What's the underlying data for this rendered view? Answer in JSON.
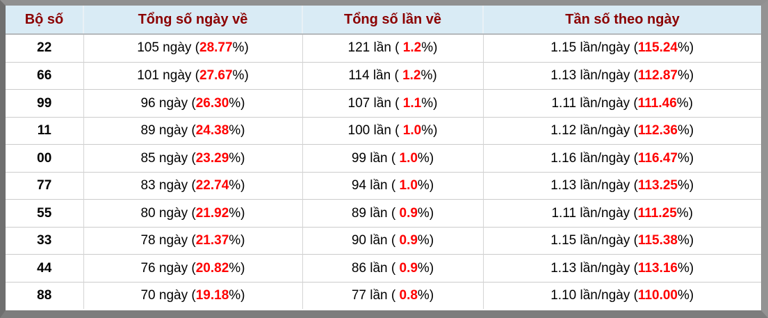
{
  "colors": {
    "header_background": "#d9ebf5",
    "header_text": "#8b0000",
    "percent_text": "#ff0000",
    "body_text": "#000000",
    "frame_gray": "#808080",
    "grid_line": "#cccccc"
  },
  "table": {
    "headers": [
      "Bộ số",
      "Tổng số ngày về",
      "Tổng số lần về",
      "Tần số theo ngày"
    ],
    "rows": [
      {
        "pair": "22",
        "days": "105 ngày (",
        "days_pct": "28.77",
        "days_close": "%)",
        "times": "121 lần ( ",
        "times_pct": "1.2",
        "times_close": "%)",
        "freq": "1.15 lần/ngày (",
        "freq_pct": "115.24",
        "freq_close": "%)"
      },
      {
        "pair": "66",
        "days": "101 ngày (",
        "days_pct": "27.67",
        "days_close": "%)",
        "times": "114 lần ( ",
        "times_pct": "1.2",
        "times_close": "%)",
        "freq": "1.13 lần/ngày (",
        "freq_pct": "112.87",
        "freq_close": "%)"
      },
      {
        "pair": "99",
        "days": "96 ngày (",
        "days_pct": "26.30",
        "days_close": "%)",
        "times": "107 lần ( ",
        "times_pct": "1.1",
        "times_close": "%)",
        "freq": "1.11 lần/ngày (",
        "freq_pct": "111.46",
        "freq_close": "%)"
      },
      {
        "pair": "11",
        "days": "89 ngày (",
        "days_pct": "24.38",
        "days_close": "%)",
        "times": "100 lần ( ",
        "times_pct": "1.0",
        "times_close": "%)",
        "freq": "1.12 lần/ngày (",
        "freq_pct": "112.36",
        "freq_close": "%)"
      },
      {
        "pair": "00",
        "days": "85 ngày (",
        "days_pct": "23.29",
        "days_close": "%)",
        "times": "99 lần ( ",
        "times_pct": "1.0",
        "times_close": "%)",
        "freq": "1.16 lần/ngày (",
        "freq_pct": "116.47",
        "freq_close": "%)"
      },
      {
        "pair": "77",
        "days": "83 ngày (",
        "days_pct": "22.74",
        "days_close": "%)",
        "times": "94 lần ( ",
        "times_pct": "1.0",
        "times_close": "%)",
        "freq": "1.13 lần/ngày (",
        "freq_pct": "113.25",
        "freq_close": "%)"
      },
      {
        "pair": "55",
        "days": "80 ngày (",
        "days_pct": "21.92",
        "days_close": "%)",
        "times": "89 lần ( ",
        "times_pct": "0.9",
        "times_close": "%)",
        "freq": "1.11 lần/ngày (",
        "freq_pct": "111.25",
        "freq_close": "%)"
      },
      {
        "pair": "33",
        "days": "78 ngày (",
        "days_pct": "21.37",
        "days_close": "%)",
        "times": "90 lần ( ",
        "times_pct": "0.9",
        "times_close": "%)",
        "freq": "1.15 lần/ngày (",
        "freq_pct": "115.38",
        "freq_close": "%)"
      },
      {
        "pair": "44",
        "days": "76 ngày (",
        "days_pct": "20.82",
        "days_close": "%)",
        "times": "86 lần ( ",
        "times_pct": "0.9",
        "times_close": "%)",
        "freq": "1.13 lần/ngày (",
        "freq_pct": "113.16",
        "freq_close": "%)"
      },
      {
        "pair": "88",
        "days": "70 ngày (",
        "days_pct": "19.18",
        "days_close": "%)",
        "times": "77 lần ( ",
        "times_pct": "0.8",
        "times_close": "%)",
        "freq": "1.10 lần/ngày (",
        "freq_pct": "110.00",
        "freq_close": "%)"
      }
    ]
  }
}
